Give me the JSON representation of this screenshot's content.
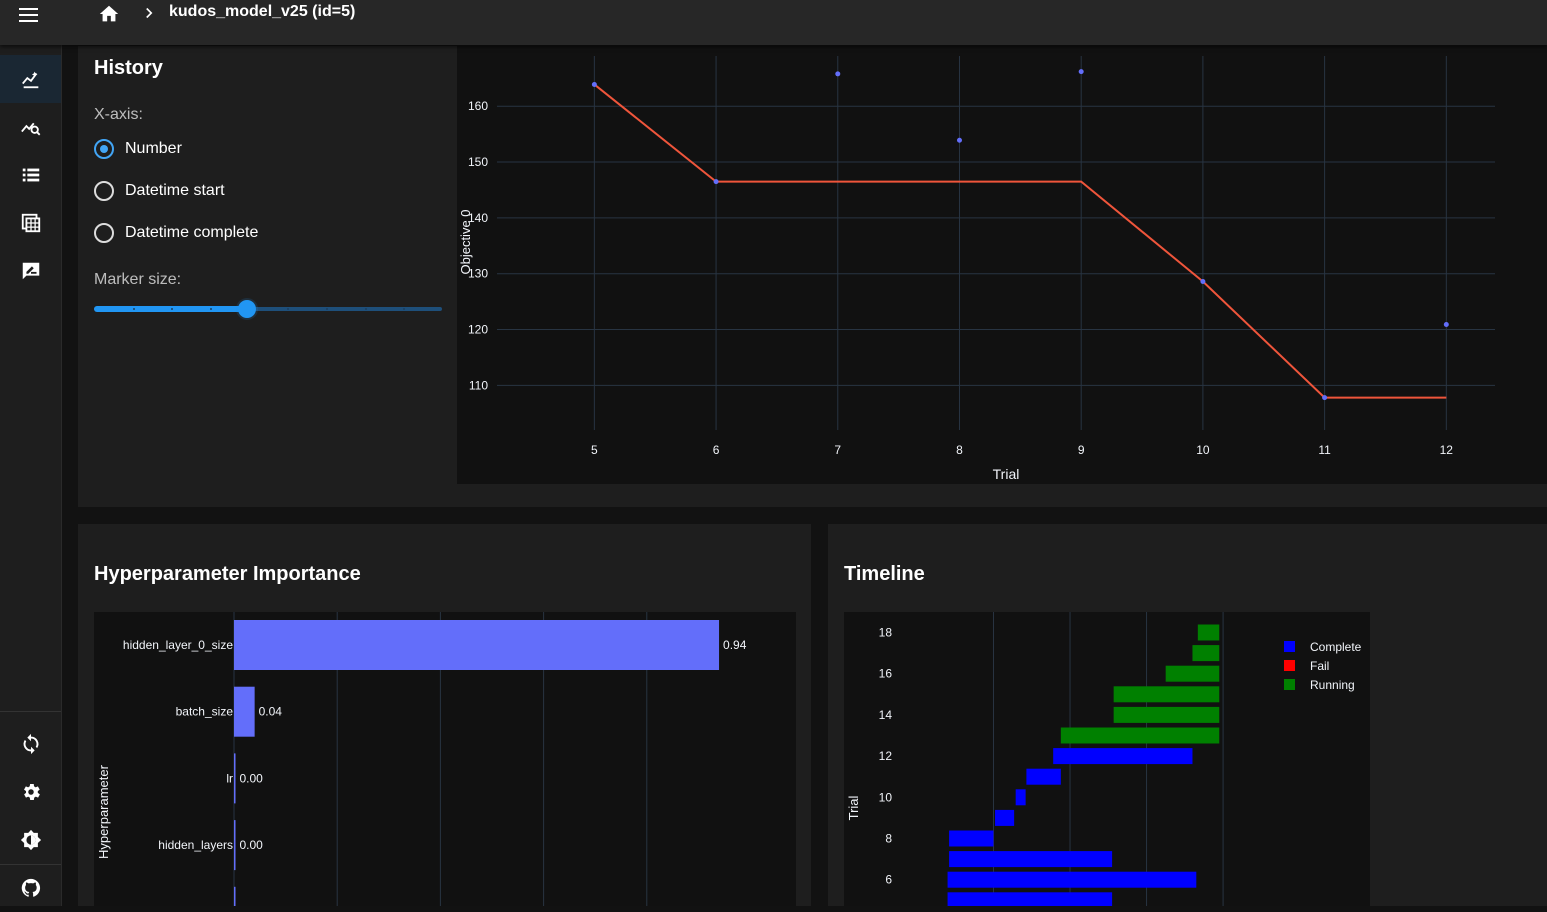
{
  "appbar": {
    "title": "kudos_model_v25 (id=5)"
  },
  "history": {
    "title": "History",
    "xaxis_label": "X-axis:",
    "options": [
      "Number",
      "Datetime start",
      "Datetime complete"
    ],
    "selected_option": "Number",
    "marker_size_label": "Marker size:",
    "marker_size_fraction": 0.44,
    "slider_steps": 9
  },
  "colors": {
    "marker": "#636efa",
    "best_line": "#ef553b",
    "importance_bar": "#636efa",
    "complete": "#0000ff",
    "fail": "#ff0000",
    "running": "#008000",
    "accent": "#2196f3"
  },
  "importance": {
    "title": "Hyperparameter Importance",
    "ylabel": "Hyperparameter"
  },
  "timeline": {
    "title": "Timeline",
    "ylabel": "Trial"
  },
  "chart_data": [
    {
      "type": "scatter",
      "title": "",
      "xlabel": "Trial",
      "ylabel": "Objective 0",
      "x": [
        5,
        6,
        7,
        8,
        9,
        10,
        11,
        12
      ],
      "y": [
        163.9,
        146.5,
        165.8,
        153.9,
        166.2,
        128.6,
        107.8,
        120.9
      ],
      "best_values": [
        163.9,
        146.5,
        146.5,
        146.5,
        146.5,
        128.6,
        107.8,
        107.8
      ],
      "xlim": [
        4.2,
        12.4
      ],
      "ylim": [
        102,
        169
      ],
      "yticks": [
        110,
        120,
        130,
        140,
        150,
        160
      ],
      "xticks": [
        5,
        6,
        7,
        8,
        9,
        10,
        11,
        12
      ],
      "grid": true
    },
    {
      "type": "bar",
      "orientation": "horizontal",
      "ylabel": "Hyperparameter",
      "categories": [
        "hidden_layer_0_size",
        "batch_size",
        "lr",
        "hidden_layers"
      ],
      "values": [
        0.94,
        0.04,
        0.0,
        0.0
      ],
      "value_labels": [
        "0.94",
        "0.04",
        "0.00",
        "0.00"
      ],
      "xlim": [
        0,
        1.0
      ]
    },
    {
      "type": "bar",
      "orientation": "horizontal",
      "subtype": "timeline",
      "ylabel": "Trial",
      "yticks": [
        6,
        8,
        10,
        12,
        14,
        16,
        18
      ],
      "legend": [
        "Complete",
        "Fail",
        "Running"
      ],
      "legend_position": "right",
      "trials": [
        {
          "trial": 5,
          "start": 0.7,
          "end": 2.85,
          "state": "Complete"
        },
        {
          "trial": 6,
          "start": 0.7,
          "end": 3.95,
          "state": "Complete"
        },
        {
          "trial": 7,
          "start": 0.72,
          "end": 2.85,
          "state": "Complete"
        },
        {
          "trial": 8,
          "start": 0.72,
          "end": 1.3,
          "state": "Complete"
        },
        {
          "trial": 9,
          "start": 1.32,
          "end": 1.57,
          "state": "Complete"
        },
        {
          "trial": 10,
          "start": 1.59,
          "end": 1.72,
          "state": "Complete"
        },
        {
          "trial": 11,
          "start": 1.73,
          "end": 2.18,
          "state": "Complete"
        },
        {
          "trial": 12,
          "start": 2.08,
          "end": 3.9,
          "state": "Complete"
        },
        {
          "trial": 13,
          "start": 2.18,
          "end": 4.25,
          "state": "Running"
        },
        {
          "trial": 14,
          "start": 2.87,
          "end": 4.25,
          "state": "Running"
        },
        {
          "trial": 15,
          "start": 2.87,
          "end": 4.25,
          "state": "Running"
        },
        {
          "trial": 16,
          "start": 3.55,
          "end": 4.25,
          "state": "Running"
        },
        {
          "trial": 17,
          "start": 3.9,
          "end": 4.25,
          "state": "Running"
        },
        {
          "trial": 18,
          "start": 3.97,
          "end": 4.25,
          "state": "Running"
        }
      ]
    }
  ]
}
